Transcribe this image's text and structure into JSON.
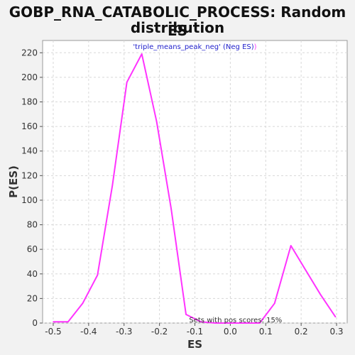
{
  "title_line1": "GOBP_RNA_CATABOLIC_PROCESS: Random ES",
  "title_line2": "distribution",
  "legend_label": "'triple_means_peak_neg' (Neg ES)",
  "legend_suffix": ")",
  "note": "Sets with pos scores: 15%",
  "colors": {
    "line": "#ff33ff",
    "legend_text": "#2222cc",
    "grid": "#d8d8d8",
    "plot_bg": "#ffffff"
  },
  "chart_data": {
    "type": "line",
    "title": "GOBP_RNA_CATABOLIC_PROCESS: Random ES distribution",
    "xlabel": "ES",
    "ylabel": "P(ES)",
    "xlim": [
      -0.53,
      0.33
    ],
    "ylim": [
      0,
      230
    ],
    "x_ticks": [
      -0.5,
      -0.4,
      -0.3,
      -0.2,
      -0.1,
      0.0,
      0.1,
      0.2,
      0.3
    ],
    "x_tick_labels": [
      "-0.5",
      "-0.4",
      "-0.3",
      "-0.2",
      "-0.1",
      "0.0",
      "0.1",
      "0.2",
      "0.3"
    ],
    "y_ticks": [
      0,
      20,
      40,
      60,
      80,
      100,
      120,
      140,
      160,
      180,
      200,
      220
    ],
    "y_tick_labels": [
      "0",
      "20",
      "40",
      "60",
      "80",
      "100",
      "120",
      "140",
      "160",
      "180",
      "200",
      "220"
    ],
    "grid": true,
    "legend_position": "top-center",
    "series": [
      {
        "name": "'triple_means_peak_neg' (Neg ES)",
        "x": [
          -0.5,
          -0.458,
          -0.417,
          -0.375,
          -0.333,
          -0.292,
          -0.25,
          -0.208,
          -0.167,
          -0.125,
          -0.083,
          -0.042,
          0.0,
          0.042,
          0.083,
          0.125,
          0.171,
          0.213,
          0.255,
          0.297
        ],
        "y": [
          1,
          1,
          16,
          39,
          112,
          196,
          219,
          164,
          93,
          7,
          1,
          0,
          0,
          0,
          0,
          16,
          63,
          43,
          23,
          5
        ]
      }
    ]
  }
}
